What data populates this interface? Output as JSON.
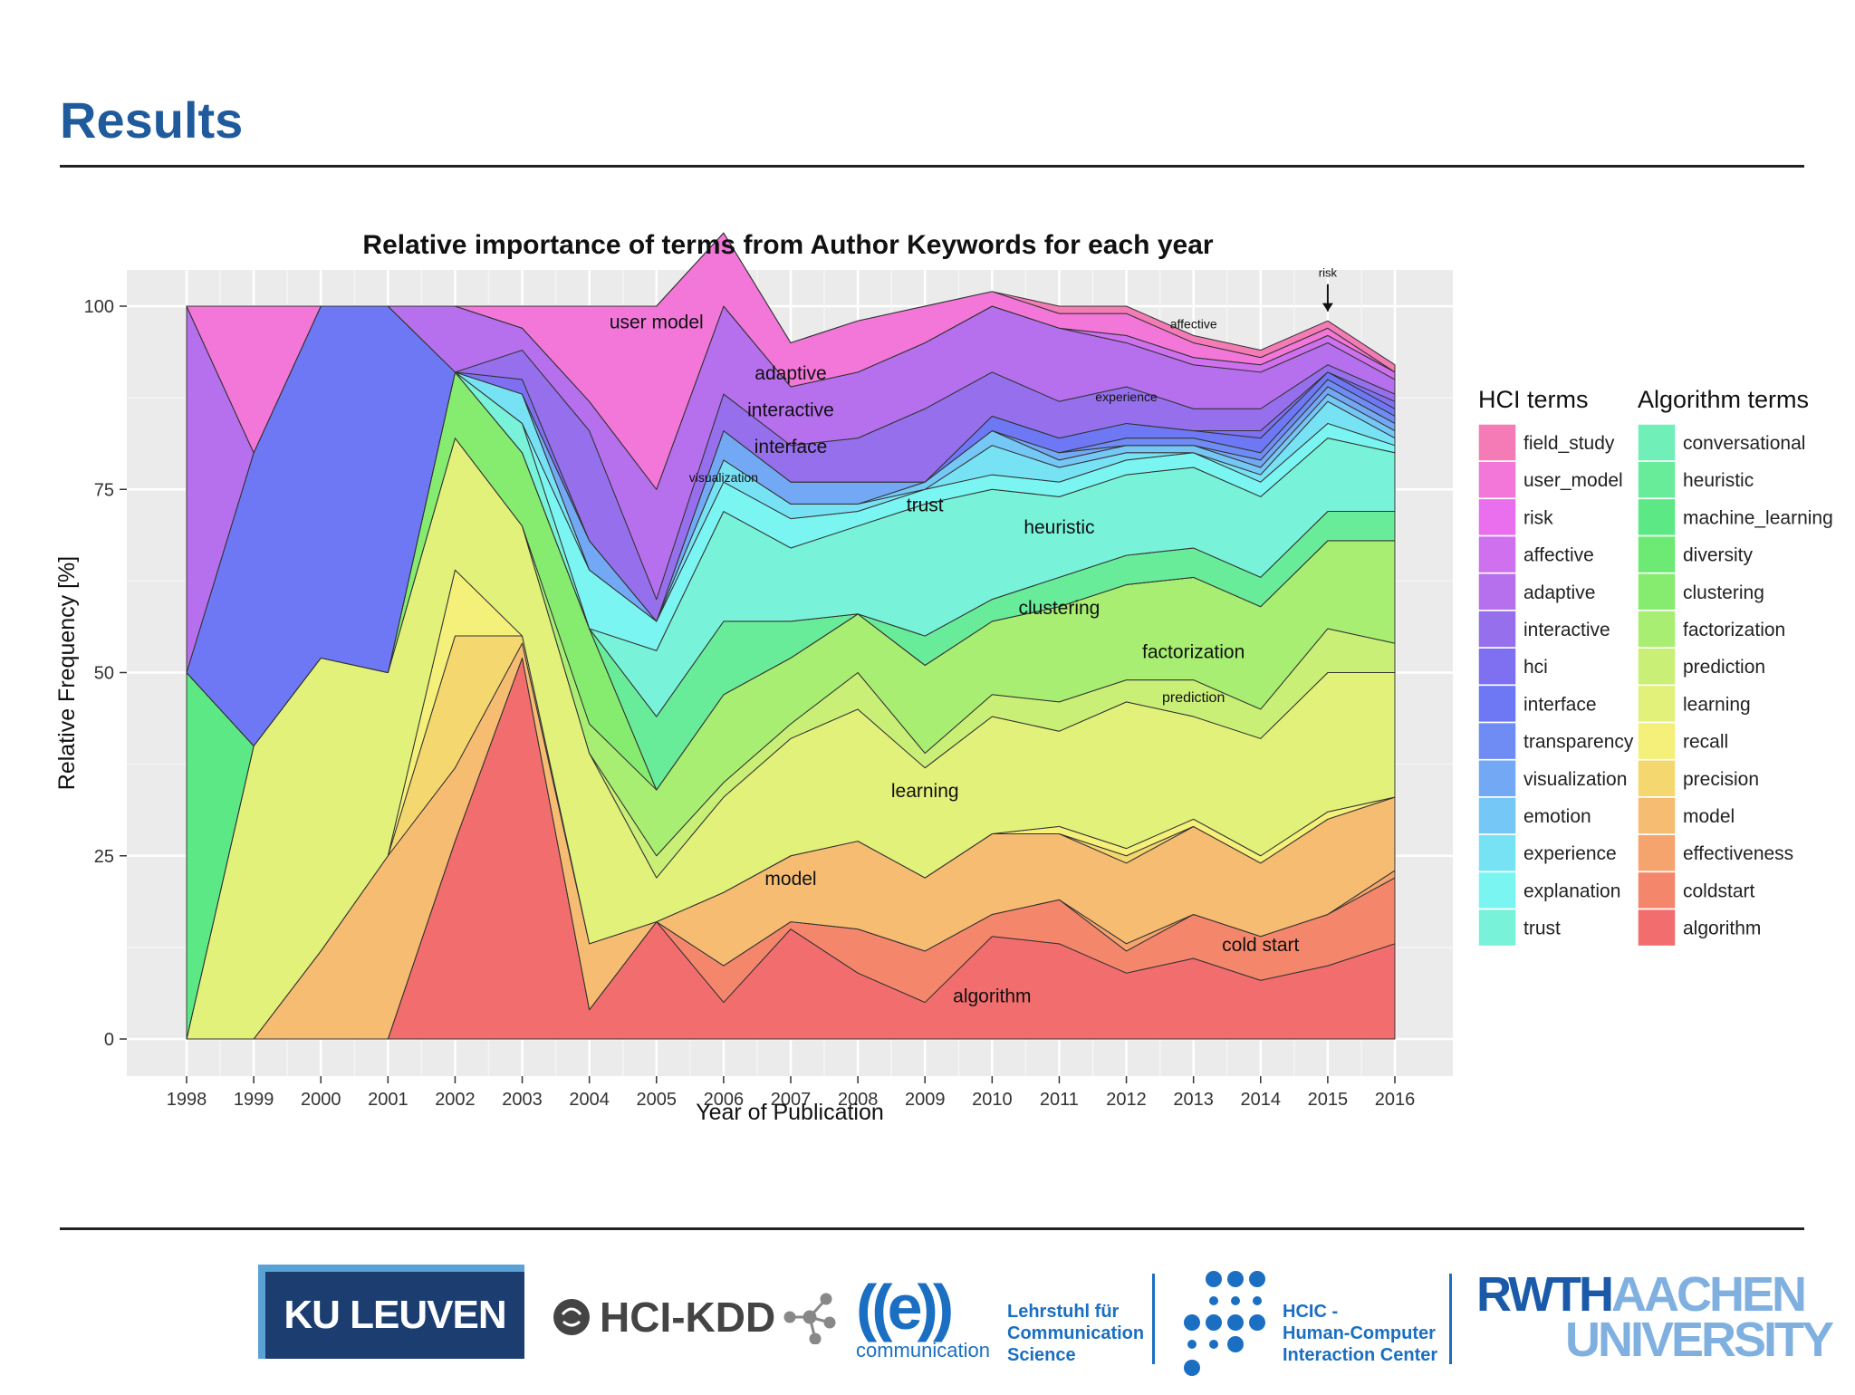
{
  "slide": {
    "title": "Results"
  },
  "chart_data": {
    "type": "area",
    "stacked": true,
    "normalized": true,
    "title": "Relative importance of terms from Author Keywords for each year",
    "xlabel": "Year of Publication",
    "ylabel": "Relative Frequency [%]",
    "ylim": [
      0,
      100
    ],
    "yticks": [
      0,
      25,
      50,
      75,
      100
    ],
    "grid": true,
    "x": [
      "1998",
      "1999",
      "2000",
      "2001",
      "2002",
      "2003",
      "2004",
      "2005",
      "2006",
      "2007",
      "2008",
      "2009",
      "2010",
      "2011",
      "2012",
      "2013",
      "2014",
      "2015",
      "2016"
    ],
    "series": [
      {
        "name": "algorithm",
        "color": "#f26d6d",
        "values": [
          0,
          0,
          0,
          0,
          27,
          52,
          4,
          16,
          5,
          15,
          9,
          5,
          14,
          13,
          9,
          11,
          8,
          10,
          13
        ]
      },
      {
        "name": "coldstart",
        "color": "#f4876b",
        "values": [
          0,
          0,
          0,
          0,
          0,
          0,
          0,
          0,
          5,
          1,
          6,
          7,
          3,
          6,
          3,
          6,
          6,
          7,
          9
        ]
      },
      {
        "name": "effectiveness",
        "color": "#f5a46e",
        "values": [
          0,
          0,
          0,
          0,
          0,
          0,
          0,
          0,
          0,
          0,
          0,
          0,
          0,
          0,
          1,
          0,
          0,
          0,
          1
        ]
      },
      {
        "name": "model",
        "color": "#f5bc72",
        "values": [
          0,
          0,
          12,
          25,
          10,
          2,
          9,
          0,
          10,
          9,
          12,
          10,
          11,
          9,
          11,
          12,
          10,
          13,
          10
        ]
      },
      {
        "name": "precision",
        "color": "#f5d76f",
        "values": [
          0,
          0,
          0,
          0,
          18,
          1,
          0,
          0,
          0,
          0,
          0,
          0,
          0,
          0,
          1,
          0,
          0,
          0,
          0
        ]
      },
      {
        "name": "recall",
        "color": "#f4f07a",
        "values": [
          0,
          0,
          0,
          0,
          9,
          0,
          0,
          0,
          0,
          0,
          0,
          0,
          0,
          1,
          1,
          1,
          1,
          1,
          0
        ]
      },
      {
        "name": "learning",
        "color": "#e1f17a",
        "values": [
          0,
          40,
          40,
          25,
          18,
          15,
          26,
          6,
          13,
          16,
          18,
          15,
          16,
          13,
          20,
          14,
          16,
          19,
          17
        ]
      },
      {
        "name": "prediction",
        "color": "#c9ef76",
        "values": [
          0,
          0,
          0,
          0,
          0,
          0,
          0,
          3,
          2,
          2,
          5,
          2,
          3,
          4,
          3,
          5,
          4,
          6,
          4
        ]
      },
      {
        "name": "factorization",
        "color": "#a7ee72",
        "values": [
          0,
          0,
          0,
          0,
          0,
          0,
          4,
          9,
          12,
          9,
          8,
          12,
          10,
          13,
          13,
          14,
          14,
          12,
          14
        ]
      },
      {
        "name": "clustering",
        "color": "#86ec70",
        "values": [
          0,
          0,
          0,
          0,
          9,
          10,
          13,
          0,
          0,
          0,
          0,
          0,
          0,
          0,
          0,
          0,
          0,
          0,
          0
        ]
      },
      {
        "name": "diversity",
        "color": "#6cea74",
        "values": [
          0,
          0,
          0,
          0,
          0,
          0,
          0,
          0,
          0,
          0,
          0,
          0,
          0,
          0,
          0,
          0,
          0,
          0,
          0
        ]
      },
      {
        "name": "machine_learning",
        "color": "#5de886",
        "values": [
          50,
          0,
          0,
          0,
          0,
          0,
          0,
          0,
          0,
          0,
          0,
          0,
          0,
          0,
          0,
          0,
          0,
          0,
          0
        ]
      },
      {
        "name": "heuristic",
        "color": "#69ec9a",
        "values": [
          0,
          0,
          0,
          0,
          0,
          0,
          0,
          10,
          10,
          5,
          0,
          4,
          3,
          4,
          4,
          4,
          4,
          4,
          4
        ]
      },
      {
        "name": "conversational",
        "color": "#71efb9",
        "values": [
          0,
          0,
          0,
          0,
          0,
          0,
          0,
          0,
          0,
          0,
          0,
          0,
          0,
          0,
          0,
          0,
          0,
          0,
          0
        ]
      },
      {
        "name": "trust",
        "color": "#78f2d8",
        "values": [
          0,
          0,
          0,
          0,
          0,
          4,
          0,
          9,
          15,
          10,
          12,
          18,
          15,
          11,
          11,
          11,
          11,
          10,
          8
        ]
      },
      {
        "name": "explanation",
        "color": "#7bf5f2",
        "values": [
          0,
          0,
          0,
          0,
          0,
          0,
          8,
          4,
          4,
          4,
          2,
          2,
          2,
          2,
          2,
          2,
          2,
          2,
          1
        ]
      },
      {
        "name": "experience",
        "color": "#78e2f5",
        "values": [
          0,
          0,
          0,
          0,
          0,
          4,
          0,
          0,
          3,
          2,
          1,
          0,
          4,
          2,
          1,
          0,
          1,
          3,
          1
        ]
      },
      {
        "name": "emotion",
        "color": "#75c7f5",
        "values": [
          0,
          0,
          0,
          0,
          0,
          0,
          0,
          0,
          0,
          0,
          0,
          1,
          2,
          1,
          1,
          1,
          1,
          1,
          1
        ]
      },
      {
        "name": "visualization",
        "color": "#73a8f5",
        "values": [
          0,
          0,
          0,
          0,
          0,
          0,
          4,
          0,
          4,
          3,
          3,
          0,
          0,
          1,
          0,
          0,
          1,
          1,
          1
        ]
      },
      {
        "name": "transparency",
        "color": "#6f8cf5",
        "values": [
          0,
          0,
          0,
          0,
          0,
          0,
          0,
          0,
          0,
          0,
          0,
          0,
          0,
          0,
          1,
          1,
          1,
          1,
          1
        ]
      },
      {
        "name": "interface",
        "color": "#6e78f5",
        "values": [
          0,
          40,
          48,
          50,
          0,
          0,
          0,
          0,
          0,
          0,
          0,
          0,
          2,
          2,
          2,
          1,
          2,
          1,
          1
        ]
      },
      {
        "name": "hci",
        "color": "#7e70f0",
        "values": [
          0,
          0,
          0,
          0,
          0,
          2,
          0,
          0,
          0,
          0,
          0,
          0,
          0,
          0,
          0,
          0,
          1,
          0,
          1
        ]
      },
      {
        "name": "interactive",
        "color": "#9670ec",
        "values": [
          0,
          0,
          0,
          0,
          0,
          4,
          15,
          3,
          5,
          5,
          6,
          10,
          6,
          5,
          5,
          3,
          3,
          1,
          1
        ]
      },
      {
        "name": "adaptive",
        "color": "#b66fed",
        "values": [
          50,
          0,
          0,
          0,
          9,
          3,
          4,
          15,
          12,
          8,
          9,
          9,
          9,
          10,
          6,
          6,
          5,
          3,
          2
        ]
      },
      {
        "name": "affective",
        "color": "#cf70ef",
        "values": [
          0,
          0,
          0,
          0,
          0,
          0,
          0,
          0,
          0,
          0,
          0,
          0,
          0,
          0,
          1,
          1,
          1,
          1,
          1
        ]
      },
      {
        "name": "risk",
        "color": "#ea6fef",
        "values": [
          0,
          0,
          0,
          0,
          0,
          0,
          0,
          0,
          0,
          0,
          0,
          0,
          0,
          0,
          0,
          0,
          0,
          0,
          0
        ]
      },
      {
        "name": "user_model",
        "color": "#f277d8",
        "values": [
          0,
          20,
          0,
          0,
          0,
          3,
          13,
          25,
          10,
          6,
          7,
          5,
          2,
          2,
          3,
          2,
          1,
          1,
          0
        ]
      },
      {
        "name": "field_study",
        "color": "#f47bb5",
        "values": [
          0,
          0,
          0,
          0,
          0,
          0,
          0,
          0,
          0,
          0,
          0,
          0,
          0,
          1,
          1,
          1,
          1,
          1,
          1
        ]
      }
    ],
    "annotations": [
      {
        "text": "user model",
        "x": "2005",
        "y": 97
      },
      {
        "text": "adaptive",
        "x": "2007",
        "y": 90
      },
      {
        "text": "interactive",
        "x": "2007",
        "y": 85
      },
      {
        "text": "interface",
        "x": "2007",
        "y": 80
      },
      {
        "text": "visualization",
        "x": "2006",
        "y": 76
      },
      {
        "text": "trust",
        "x": "2009",
        "y": 72
      },
      {
        "text": "heuristic",
        "x": "2011",
        "y": 69
      },
      {
        "text": "clustering",
        "x": "2011",
        "y": 58
      },
      {
        "text": "factorization",
        "x": "2013",
        "y": 52
      },
      {
        "text": "prediction",
        "x": "2013",
        "y": 46
      },
      {
        "text": "learning",
        "x": "2009",
        "y": 33
      },
      {
        "text": "model",
        "x": "2007",
        "y": 21
      },
      {
        "text": "cold start",
        "x": "2014",
        "y": 12
      },
      {
        "text": "algorithm",
        "x": "2010",
        "y": 5
      },
      {
        "text": "affective",
        "x": "2013",
        "y": 97
      },
      {
        "text": "experience",
        "x": "2012",
        "y": 87
      },
      {
        "text": "risk",
        "x": "2015",
        "y": 104
      }
    ],
    "legend": {
      "placement": "right",
      "groups": [
        {
          "title": "HCI terms",
          "items": [
            "field_study",
            "user_model",
            "risk",
            "affective",
            "adaptive",
            "interactive",
            "hci",
            "interface",
            "transparency",
            "visualization",
            "emotion",
            "experience",
            "explanation",
            "trust"
          ]
        },
        {
          "title": "Algorithm terms",
          "items": [
            "conversational",
            "heuristic",
            "machine_learning",
            "diversity",
            "clustering",
            "factorization",
            "prediction",
            "learning",
            "recall",
            "precision",
            "model",
            "effectiveness",
            "coldstart",
            "algorithm"
          ]
        }
      ]
    }
  },
  "footer": {
    "logos": {
      "ku_leuven": "KU LEUVEN",
      "hci_kdd": "HCI-KDD",
      "communication_sub": "communication",
      "communication_right": [
        "Lehrstuhl für",
        "Communication",
        "Science"
      ],
      "hcic": [
        "HCIC -",
        "Human-Computer",
        "Interaction Center"
      ],
      "rwth_line1a": "RWTH",
      "rwth_line1b": "AACHEN",
      "rwth_line2": "UNIVERSITY"
    }
  }
}
